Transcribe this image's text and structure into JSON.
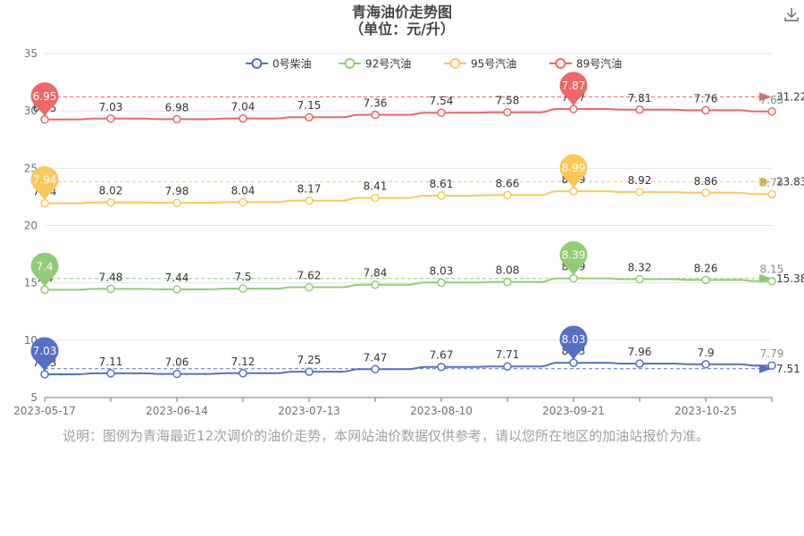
{
  "title": {
    "line1": "青海油价走势图",
    "line2": "（单位：元/升）"
  },
  "toolbar": {
    "download_icon": "download-icon"
  },
  "note": "说明：图例为青海最近12次调价的油价走势，本网站油价数据仅供参考，请以您所在地区的加油站报价为准。",
  "chart_data": {
    "type": "line",
    "title": "青海油价走势图",
    "subtitle": "（单位：元/升）",
    "x_labels": [
      "2023-05-17",
      "2023-06-14",
      "2023-07-13",
      "2023-08-10",
      "2023-09-21",
      "2023-10-25"
    ],
    "x": [
      "2023-05-17",
      "2023-06-01",
      "2023-06-14",
      "2023-06-28",
      "2023-07-13",
      "2023-07-27",
      "2023-08-10",
      "2023-08-24",
      "2023-09-21",
      "2023-10-08",
      "2023-10-25",
      "2023-11-08"
    ],
    "ylim": [
      5,
      35
    ],
    "y_ticks": [
      5,
      10,
      15,
      20,
      25,
      30,
      35
    ],
    "grid": true,
    "legend_position": "top-center",
    "series": [
      {
        "name": "0号柴油",
        "color": "#5470c6",
        "offset": 0,
        "labels": [
          7.03,
          7.11,
          7.06,
          7.12,
          7.25,
          7.47,
          7.67,
          7.71,
          8.03,
          7.96,
          7.9,
          7.79
        ],
        "max_label": "8.03",
        "min_label": "7.03",
        "average": 7.51
      },
      {
        "name": "92号汽油",
        "color": "#91cc75",
        "offset": 7,
        "labels": [
          7.4,
          7.48,
          7.44,
          7.5,
          7.62,
          7.84,
          8.03,
          8.08,
          8.39,
          8.32,
          8.26,
          8.15
        ],
        "max_label": "8.39",
        "min_label": "7.4",
        "average": 15.38
      },
      {
        "name": "95号汽油",
        "color": "#fac858",
        "offset": 14,
        "labels": [
          7.94,
          8.02,
          7.98,
          8.04,
          8.17,
          8.41,
          8.61,
          8.66,
          8.99,
          8.92,
          8.86,
          8.74
        ],
        "max_label": "8.99",
        "min_label": "7.94",
        "average": 23.83
      },
      {
        "name": "89号汽油",
        "color": "#ee6666",
        "offset": 22.3,
        "labels": [
          6.95,
          7.03,
          6.98,
          7.04,
          7.15,
          7.36,
          7.54,
          7.58,
          7.87,
          7.81,
          7.76,
          7.65
        ],
        "max_label": "7.87",
        "min_label": "6.95",
        "average": 31.22
      }
    ]
  }
}
